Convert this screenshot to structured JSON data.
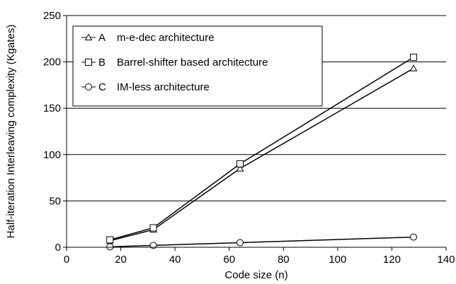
{
  "chart_data": {
    "type": "line",
    "title": "",
    "xlabel": "Code size (n)",
    "ylabel": "Half-iteration Interleaving complexity (Kgates)",
    "xlim": [
      0,
      140
    ],
    "ylim": [
      0,
      250
    ],
    "x_ticks": [
      "0",
      "20",
      "40",
      "60",
      "80",
      "100",
      "120",
      "140"
    ],
    "y_ticks": [
      "0",
      "50",
      "100",
      "150",
      "200",
      "250"
    ],
    "grid": "horizontal",
    "legend_position": "top-left",
    "series": [
      {
        "name": "m-e-dec architecture",
        "letter": "A",
        "marker": "triangle",
        "x": [
          16,
          32,
          64,
          128
        ],
        "y": [
          7,
          19,
          85,
          193
        ]
      },
      {
        "name": "Barrel-shifter based architecture",
        "letter": "B",
        "marker": "square",
        "x": [
          16,
          32,
          64,
          128
        ],
        "y": [
          8,
          21,
          90,
          205
        ]
      },
      {
        "name": "IM-less architecture",
        "letter": "C",
        "marker": "circle",
        "x": [
          16,
          32,
          64,
          128
        ],
        "y": [
          0.5,
          2,
          5,
          11
        ]
      }
    ]
  }
}
